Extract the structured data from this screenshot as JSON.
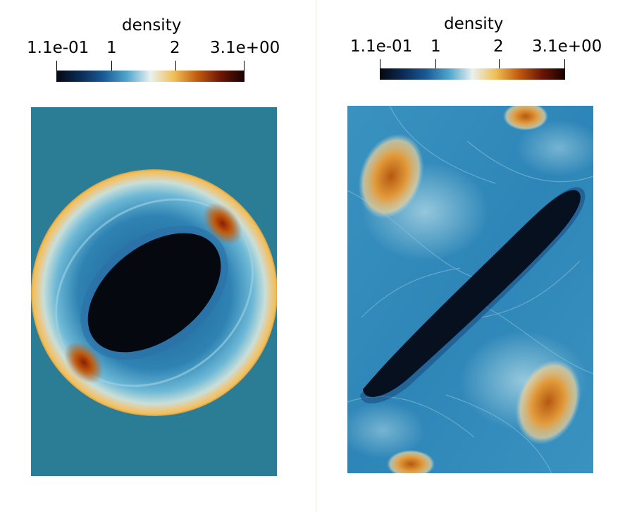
{
  "panels": [
    {
      "colorbar": {
        "title": "density",
        "tick_labels": [
          "1.1e-01",
          "1",
          "2",
          "3.1e+00"
        ]
      }
    },
    {
      "colorbar": {
        "title": "density",
        "tick_labels": [
          "1.1e-01",
          "1",
          "2",
          "3.1e+00"
        ]
      }
    }
  ],
  "colormap": {
    "background": "#2a7d94",
    "stops": [
      "#05080f",
      "#0b2b55",
      "#1a5a94",
      "#4fa6cc",
      "#e9f1f0",
      "#f0bf57",
      "#c05b0e",
      "#6b1606",
      "#170100"
    ]
  }
}
